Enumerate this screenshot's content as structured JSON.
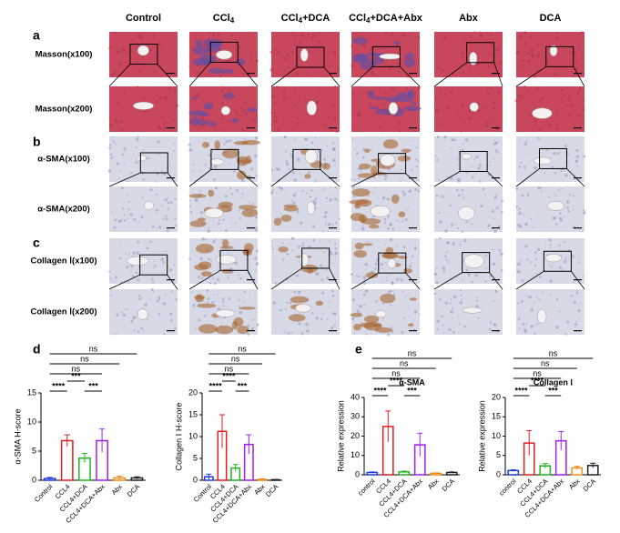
{
  "figure": {
    "panel_letters": [
      "a",
      "b",
      "c",
      "d",
      "e"
    ],
    "headers": [
      {
        "text": "Control"
      },
      {
        "text": "CCl",
        "sub": "4"
      },
      {
        "text": "CCl",
        "sub": "4",
        "suffix": "+DCA"
      },
      {
        "text": "CCl",
        "sub": "4",
        "suffix": "+DCA+Abx"
      },
      {
        "text": "Abx"
      },
      {
        "text": "DCA"
      }
    ],
    "row_labels": [
      "Masson(x100)",
      "Masson(x200)",
      "α-SMA(x100)",
      "α-SMA(x200)",
      "Collagen Ⅰ(x100)",
      "Collagen Ⅰ(x200)"
    ]
  },
  "chart_data": [
    {
      "type": "bar",
      "ylabel": "α-SMA H-score",
      "categories": [
        "Control",
        "CCL4",
        "CCL4+DCA",
        "CCL4+DCA+Abx",
        "Abx",
        "DCA"
      ],
      "values": [
        0.3,
        6.8,
        3.8,
        6.8,
        0.4,
        0.4
      ],
      "errors": [
        0.2,
        1.0,
        0.8,
        2.0,
        0.3,
        0.2
      ],
      "colors": [
        "#1f3fd6",
        "#e01e1e",
        "#21b321",
        "#a020f0",
        "#f08a1c",
        "#222222"
      ],
      "ylim": [
        0,
        15
      ],
      "yticks": [
        0,
        5,
        10,
        15
      ],
      "comparisons": [
        {
          "groups": [
            0,
            1
          ],
          "label": "****"
        },
        {
          "groups": [
            2,
            3
          ],
          "label": "***"
        },
        {
          "groups": [
            1,
            2
          ],
          "label": "***"
        },
        {
          "groups": [
            0,
            3
          ],
          "label": "ns"
        },
        {
          "groups": [
            0,
            4
          ],
          "label": "ns"
        },
        {
          "groups": [
            0,
            5
          ],
          "label": "ns"
        }
      ]
    },
    {
      "type": "bar",
      "ylabel": "Collagen Ⅰ H-score",
      "categories": [
        "Control",
        "CCL4",
        "CCL4+DCA",
        "CCL4+DCA+Abx",
        "Abx",
        "DCA"
      ],
      "values": [
        0.8,
        11.2,
        2.8,
        8.2,
        0.2,
        0.1
      ],
      "errors": [
        0.6,
        3.8,
        0.8,
        2.2,
        0.1,
        0.1
      ],
      "colors": [
        "#1f3fd6",
        "#e01e1e",
        "#21b321",
        "#a020f0",
        "#f08a1c",
        "#222222"
      ],
      "ylim": [
        0,
        20
      ],
      "yticks": [
        0,
        5,
        10,
        15,
        20
      ],
      "comparisons": [
        {
          "groups": [
            0,
            1
          ],
          "label": "****"
        },
        {
          "groups": [
            2,
            3
          ],
          "label": "***"
        },
        {
          "groups": [
            1,
            2
          ],
          "label": "****"
        },
        {
          "groups": [
            0,
            3
          ],
          "label": "ns"
        },
        {
          "groups": [
            0,
            4
          ],
          "label": "ns"
        },
        {
          "groups": [
            0,
            5
          ],
          "label": "ns"
        }
      ]
    },
    {
      "type": "bar",
      "title": "α-SMA",
      "ylabel": "Relative expression",
      "categories": [
        "control",
        "CCL4",
        "CCL4+DCA",
        "CCL4+DCA+Abx",
        "Abx",
        "DCA"
      ],
      "values": [
        1.2,
        25,
        1.5,
        15.5,
        0.8,
        1.2
      ],
      "errors": [
        0.3,
        8,
        0.4,
        6,
        0.2,
        0.3
      ],
      "colors": [
        "#1f3fd6",
        "#e01e1e",
        "#21b321",
        "#a020f0",
        "#f08a1c",
        "#222222"
      ],
      "ylim": [
        0,
        40
      ],
      "yticks": [
        0,
        10,
        20,
        30,
        40
      ],
      "comparisons": [
        {
          "groups": [
            0,
            1
          ],
          "label": "****"
        },
        {
          "groups": [
            2,
            3
          ],
          "label": "***"
        },
        {
          "groups": [
            1,
            2
          ],
          "label": "****"
        },
        {
          "groups": [
            0,
            3
          ],
          "label": "ns"
        },
        {
          "groups": [
            0,
            4
          ],
          "label": "ns"
        },
        {
          "groups": [
            0,
            5
          ],
          "label": "ns"
        }
      ]
    },
    {
      "type": "bar",
      "title": "Collagen Ⅰ",
      "ylabel": "Relative expression",
      "categories": [
        "control",
        "CCL4",
        "CCL4+DCA",
        "CCL4+DCA+Abx",
        "Abx",
        "DCA"
      ],
      "values": [
        1.1,
        8.2,
        2.3,
        8.8,
        1.8,
        2.4
      ],
      "errors": [
        0.2,
        3.2,
        0.6,
        2.4,
        0.4,
        0.6
      ],
      "colors": [
        "#1f3fd6",
        "#e01e1e",
        "#21b321",
        "#a020f0",
        "#f08a1c",
        "#222222"
      ],
      "ylim": [
        0,
        20
      ],
      "yticks": [
        0,
        5,
        10,
        15,
        20
      ],
      "comparisons": [
        {
          "groups": [
            0,
            1
          ],
          "label": "****"
        },
        {
          "groups": [
            2,
            3
          ],
          "label": "***"
        },
        {
          "groups": [
            1,
            2
          ],
          "label": "****"
        },
        {
          "groups": [
            0,
            3
          ],
          "label": "ns"
        },
        {
          "groups": [
            0,
            4
          ],
          "label": "ns"
        },
        {
          "groups": [
            0,
            5
          ],
          "label": "ns"
        }
      ]
    }
  ]
}
